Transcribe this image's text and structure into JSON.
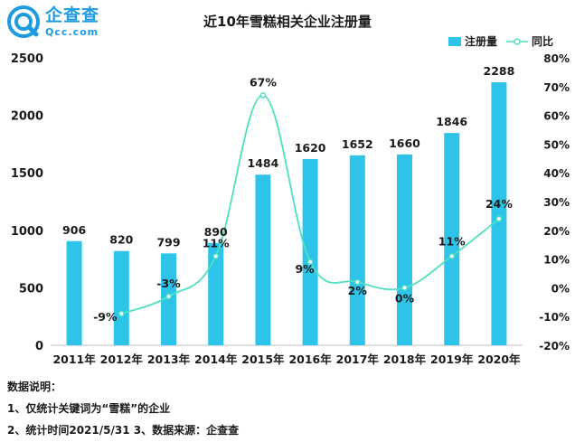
{
  "logo": {
    "cn": "企查查",
    "en": "Qcc.com"
  },
  "chart_data": {
    "type": "bar",
    "title": "近10年雪糕相关企业注册量",
    "categories": [
      "2011年",
      "2012年",
      "2013年",
      "2014年",
      "2015年",
      "2016年",
      "2017年",
      "2018年",
      "2019年",
      "2020年"
    ],
    "series": [
      {
        "name": "注册量",
        "type": "bar",
        "axis": "left",
        "color": "#2ec4ea",
        "values": [
          906,
          820,
          799,
          890,
          1484,
          1620,
          1652,
          1660,
          1846,
          2288
        ],
        "labels": [
          "906",
          "820",
          "799",
          "890",
          "1484",
          "1620",
          "1652",
          "1660",
          "1846",
          "2288"
        ]
      },
      {
        "name": "同比",
        "type": "line",
        "axis": "right",
        "color": "#4ee0c0",
        "values": [
          null,
          -9,
          -3,
          11,
          67,
          9,
          2,
          0,
          11,
          24
        ],
        "labels": [
          "",
          "-9%",
          "-3%",
          "11%",
          "67%",
          "9%",
          "2%",
          "0%",
          "11%",
          "24%"
        ]
      }
    ],
    "ylim": [
      0,
      2500
    ],
    "yticks": [
      "0",
      "500",
      "1000",
      "1500",
      "2000",
      "2500"
    ],
    "y2lim": [
      -20,
      80
    ],
    "y2ticks": [
      "-20%",
      "-10%",
      "0%",
      "10%",
      "20%",
      "30%",
      "40%",
      "50%",
      "60%",
      "70%",
      "80%"
    ],
    "legend": "top-right",
    "grid": false
  },
  "notes": {
    "heading": "数据说明：",
    "line1": "1、仅统计关键词为“雪糕”的企业",
    "line2": "2、统计时间2021/5/31   3、数据来源：企查查"
  }
}
